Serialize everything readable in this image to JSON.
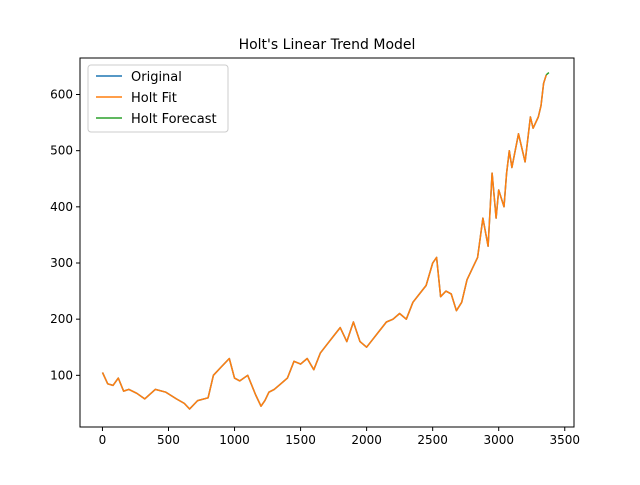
{
  "chart_data": {
    "type": "line",
    "title": "Holt's Linear Trend Model",
    "xlabel": "",
    "ylabel": "",
    "xlim": [
      -170,
      3570
    ],
    "ylim": [
      8,
      665
    ],
    "x_ticks": [
      0,
      500,
      1000,
      1500,
      2000,
      2500,
      3000,
      3500
    ],
    "y_ticks": [
      100,
      200,
      300,
      400,
      500,
      600
    ],
    "grid": false,
    "legend": "top-left",
    "series": [
      {
        "name": "Original",
        "color": "#1f77b4",
        "x": [
          0,
          40,
          80,
          120,
          160,
          200,
          260,
          320,
          400,
          480,
          560,
          620,
          660,
          720,
          800,
          840,
          900,
          960,
          1000,
          1040,
          1100,
          1160,
          1200,
          1230,
          1260,
          1300,
          1350,
          1400,
          1450,
          1500,
          1550,
          1600,
          1650,
          1700,
          1750,
          1800,
          1850,
          1900,
          1950,
          2000,
          2050,
          2100,
          2150,
          2200,
          2250,
          2300,
          2350,
          2400,
          2450,
          2500,
          2530,
          2560,
          2600,
          2640,
          2680,
          2720,
          2760,
          2800,
          2840,
          2880,
          2920,
          2950,
          2980,
          3000,
          3040,
          3060,
          3080,
          3100,
          3150,
          3200,
          3240,
          3260,
          3300,
          3320,
          3340,
          3360
        ],
        "y": [
          105,
          85,
          82,
          95,
          72,
          75,
          68,
          58,
          75,
          70,
          58,
          50,
          40,
          55,
          60,
          100,
          115,
          130,
          95,
          90,
          100,
          65,
          45,
          55,
          70,
          75,
          85,
          95,
          125,
          120,
          130,
          110,
          140,
          155,
          170,
          185,
          160,
          195,
          160,
          150,
          165,
          180,
          195,
          200,
          210,
          200,
          230,
          245,
          260,
          300,
          310,
          240,
          250,
          245,
          215,
          230,
          270,
          290,
          310,
          380,
          330,
          460,
          380,
          430,
          400,
          460,
          500,
          470,
          530,
          480,
          560,
          540,
          560,
          580,
          620,
          635
        ]
      },
      {
        "name": "Holt Fit",
        "color": "#ff7f0e",
        "x": [
          0,
          40,
          80,
          120,
          160,
          200,
          260,
          320,
          400,
          480,
          560,
          620,
          660,
          720,
          800,
          840,
          900,
          960,
          1000,
          1040,
          1100,
          1160,
          1200,
          1230,
          1260,
          1300,
          1350,
          1400,
          1450,
          1500,
          1550,
          1600,
          1650,
          1700,
          1750,
          1800,
          1850,
          1900,
          1950,
          2000,
          2050,
          2100,
          2150,
          2200,
          2250,
          2300,
          2350,
          2400,
          2450,
          2500,
          2530,
          2560,
          2600,
          2640,
          2680,
          2720,
          2760,
          2800,
          2840,
          2880,
          2920,
          2950,
          2980,
          3000,
          3040,
          3060,
          3080,
          3100,
          3150,
          3200,
          3240,
          3260,
          3300,
          3320,
          3340,
          3360
        ],
        "y": [
          105,
          85,
          82,
          95,
          72,
          75,
          68,
          58,
          75,
          70,
          58,
          50,
          40,
          55,
          60,
          100,
          115,
          130,
          95,
          90,
          100,
          65,
          45,
          55,
          70,
          75,
          85,
          95,
          125,
          120,
          130,
          110,
          140,
          155,
          170,
          185,
          160,
          195,
          160,
          150,
          165,
          180,
          195,
          200,
          210,
          200,
          230,
          245,
          260,
          300,
          310,
          240,
          250,
          245,
          215,
          230,
          270,
          290,
          310,
          380,
          330,
          460,
          380,
          430,
          400,
          460,
          500,
          470,
          530,
          480,
          560,
          540,
          560,
          580,
          620,
          635
        ]
      },
      {
        "name": "Holt Forecast",
        "color": "#2ca02c",
        "x": [
          3360,
          3365,
          3370,
          3375,
          3380
        ],
        "y": [
          635,
          636,
          637,
          638,
          639
        ]
      }
    ]
  }
}
